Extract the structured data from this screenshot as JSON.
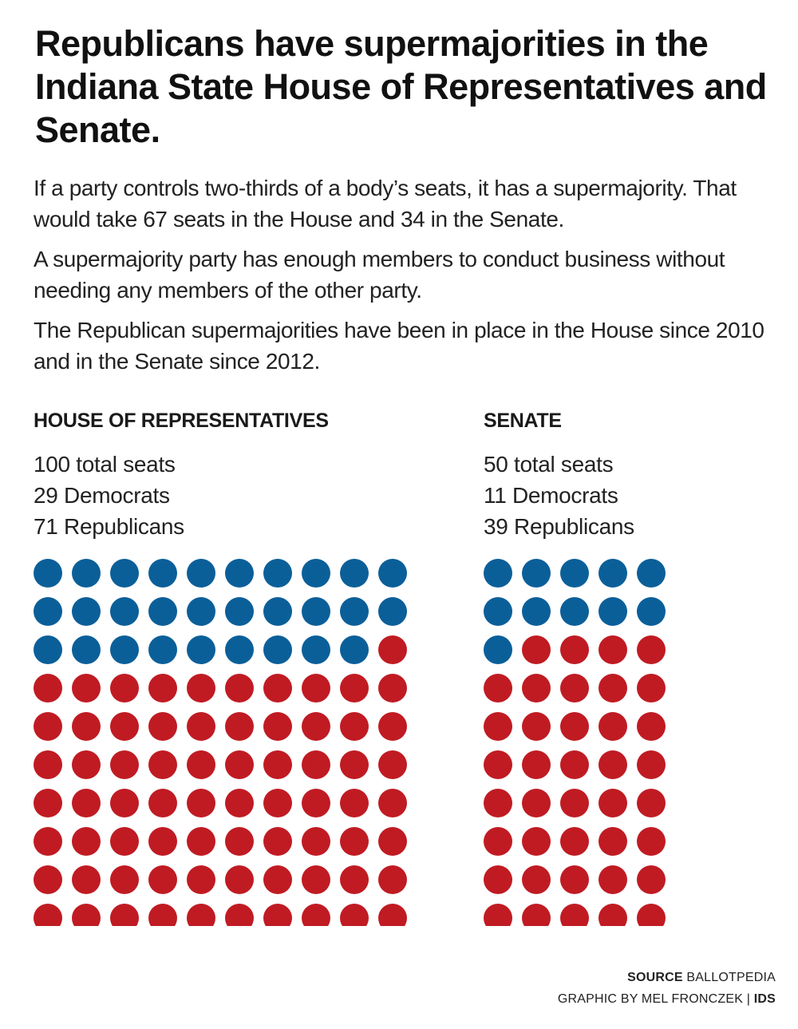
{
  "title": "Republicans have supermajorities in the Indiana State House of Representatives and Senate.",
  "paragraphs": [
    "If a party controls two-thirds of a body’s seats, it has a supermajority. That would take 67 seats in the House and 34 in the Senate.",
    "A supermajority party has enough members to conduct business without needing any members of the other party.",
    "The Republican supermajorities have been in place in the House since 2010 and in the Senate since 2012."
  ],
  "house": {
    "heading": "HOUSE OF REPRESENTATIVES",
    "total_text": "100 total seats",
    "dem_text": "29 Democrats",
    "rep_text": "71 Republicans"
  },
  "senate": {
    "heading": "SENATE",
    "total_text": "50 total seats",
    "dem_text": "11 Democrats",
    "rep_text": "39 Republicans"
  },
  "credits": {
    "source_label": "SOURCE",
    "source_value": "BALLOTPEDIA",
    "graphic_by": "GRAPHIC BY MEL FRONCZEK | ",
    "outlet": "IDS"
  },
  "colors": {
    "democrat": "#0b5f99",
    "republican": "#c01b23"
  },
  "chart_data": [
    {
      "type": "waffle",
      "title": "HOUSE OF REPRESENTATIVES",
      "total": 100,
      "columns": 10,
      "rows": 10,
      "categories": [
        "Democrats",
        "Republicans"
      ],
      "values": [
        29,
        71
      ]
    },
    {
      "type": "waffle",
      "title": "SENATE",
      "total": 50,
      "columns": 5,
      "rows": 10,
      "categories": [
        "Democrats",
        "Republicans"
      ],
      "values": [
        11,
        39
      ]
    }
  ]
}
